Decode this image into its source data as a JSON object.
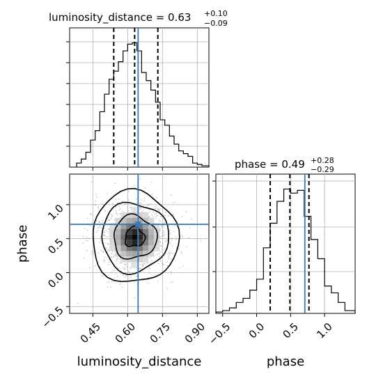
{
  "chart_data": {
    "type": "corner",
    "params": [
      "luminosity_distance",
      "phase"
    ],
    "truth": {
      "luminosity_distance": 0.645,
      "phase": 0.71
    },
    "colors": {
      "truth": "#3b78b4",
      "hist": "#000000",
      "grid": "#b0b0b0",
      "points": "#9a9a9a"
    },
    "grid": true,
    "diag": [
      {
        "title_prefix": "luminosity_distance = 0.63",
        "sup": "+0.10",
        "sub": "−0.09",
        "median": 0.63,
        "quantiles": [
          0.54,
          0.63,
          0.73
        ],
        "xlim": [
          0.35,
          0.95
        ],
        "bins": [
          0.38,
          0.4,
          0.42,
          0.44,
          0.46,
          0.48,
          0.5,
          0.52,
          0.54,
          0.56,
          0.58,
          0.6,
          0.62,
          0.64,
          0.66,
          0.68,
          0.7,
          0.72,
          0.74,
          0.76,
          0.78,
          0.8,
          0.82,
          0.84,
          0.86,
          0.88,
          0.9,
          0.92,
          0.95
        ],
        "counts": [
          3,
          6,
          11,
          20,
          27,
          41,
          54,
          65,
          71,
          78,
          86,
          91,
          92,
          86,
          70,
          64,
          57,
          48,
          35,
          31,
          23,
          17,
          12,
          10,
          8,
          3,
          2,
          1
        ]
      },
      {
        "title_prefix": "phase = 0.49",
        "sup": "+0.28",
        "sub": "−0.29",
        "median": 0.49,
        "quantiles": [
          0.2,
          0.49,
          0.77
        ],
        "xlim": [
          -0.6,
          1.45
        ],
        "bins": [
          -0.6,
          -0.5,
          -0.4,
          -0.3,
          -0.2,
          -0.1,
          0.0,
          0.1,
          0.2,
          0.3,
          0.4,
          0.5,
          0.6,
          0.7,
          0.8,
          0.9,
          1.0,
          1.1,
          1.2,
          1.3,
          1.45
        ],
        "counts": [
          1,
          2,
          4,
          8,
          11,
          17,
          25,
          48,
          66,
          82,
          91,
          88,
          90,
          71,
          54,
          40,
          20,
          15,
          8,
          2
        ]
      }
    ],
    "scatter2d": {
      "x_param": "luminosity_distance",
      "y_param": "phase",
      "xlim": [
        0.35,
        0.95
      ],
      "ylim": [
        -0.6,
        1.45
      ],
      "center": [
        0.63,
        0.52
      ],
      "spread": [
        0.09,
        0.28
      ]
    },
    "ticks": {
      "x1": [
        "0.45",
        "0.60",
        "0.75",
        "0.90"
      ],
      "y2": [
        "−0.5",
        "0.0",
        "0.5",
        "1.0"
      ],
      "x2": [
        "−0.5",
        "0.0",
        "0.5",
        "1.0"
      ]
    },
    "axis_labels": {
      "x1": "luminosity_distance",
      "x2": "phase",
      "y2": "phase"
    }
  }
}
